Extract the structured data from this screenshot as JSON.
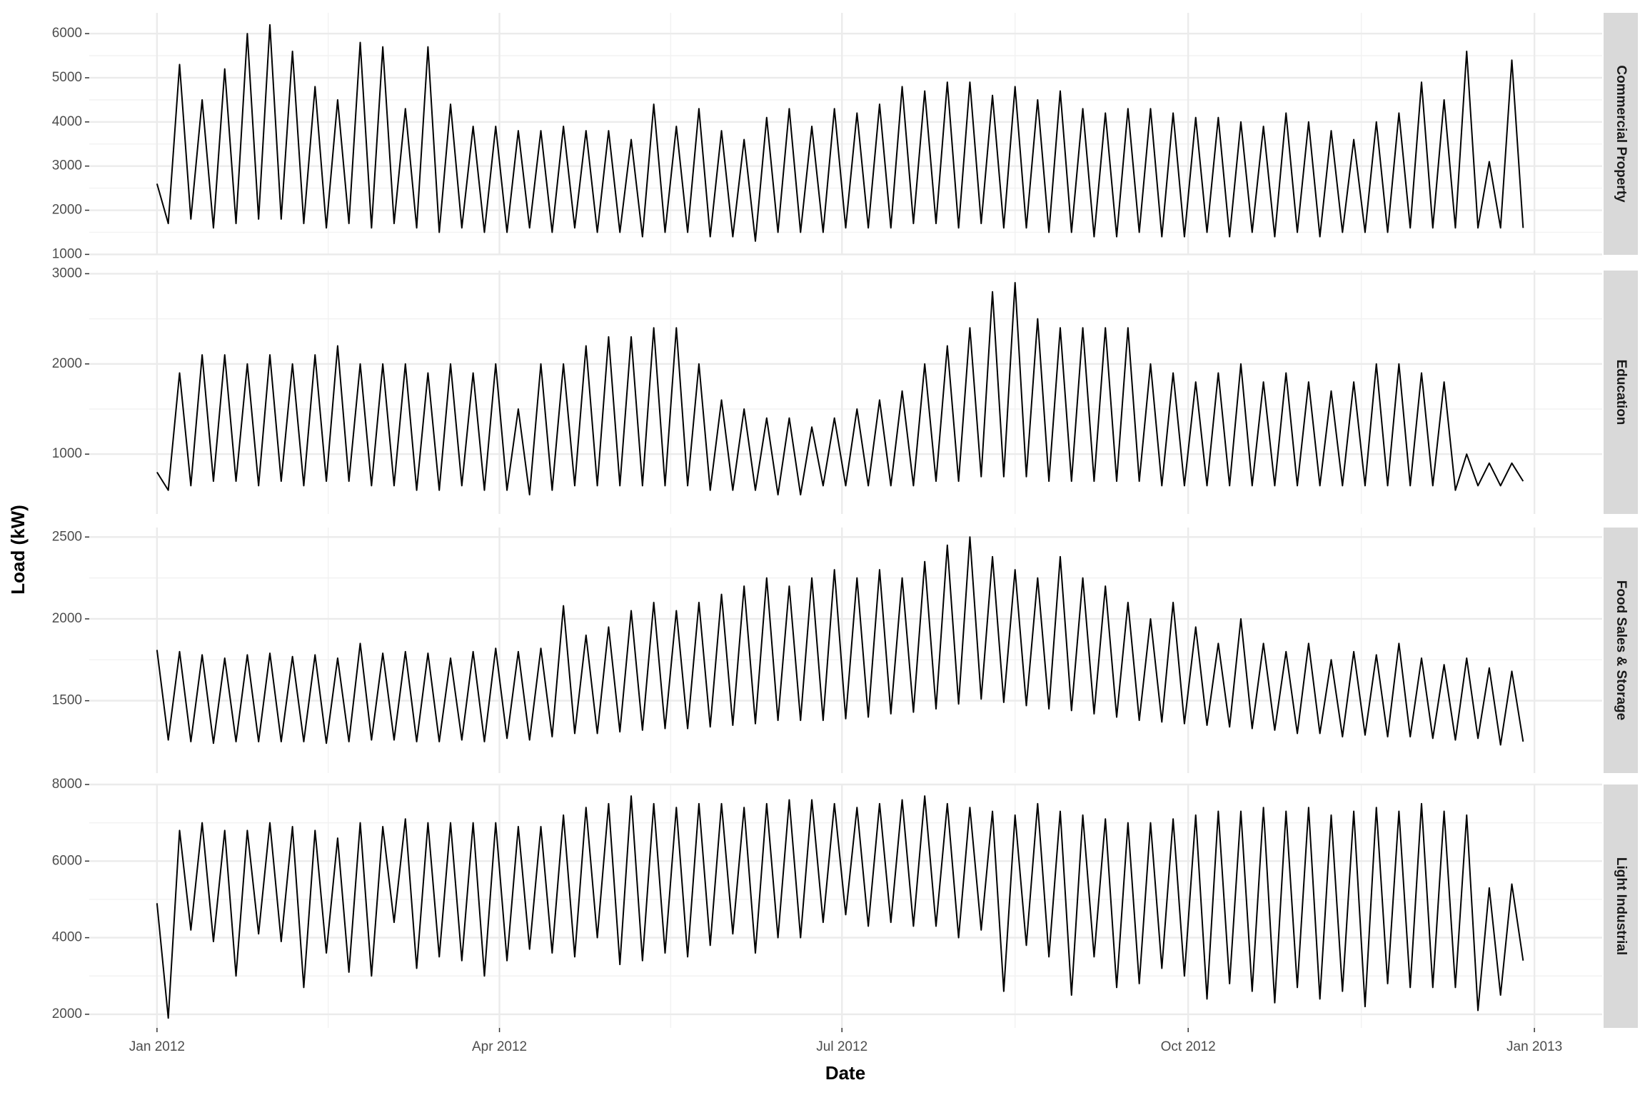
{
  "chart_data": {
    "type": "line",
    "facet": true,
    "xlabel": "Date",
    "ylabel": "Load (kW)",
    "grid": true,
    "color": "#000000",
    "xlim": [
      -18,
      384
    ],
    "xticks": [
      {
        "value": 0,
        "label": "Jan 2012"
      },
      {
        "value": 91,
        "label": "Apr 2012"
      },
      {
        "value": 182,
        "label": "Jul 2012"
      },
      {
        "value": 274,
        "label": "Oct 2012"
      },
      {
        "value": 366,
        "label": "Jan 2013"
      }
    ],
    "x": [
      0,
      3,
      6,
      9,
      12,
      15,
      18,
      21,
      24,
      27,
      30,
      33,
      36,
      39,
      42,
      45,
      48,
      51,
      54,
      57,
      60,
      63,
      66,
      69,
      72,
      75,
      78,
      81,
      84,
      87,
      90,
      93,
      96,
      99,
      102,
      105,
      108,
      111,
      114,
      117,
      120,
      123,
      126,
      129,
      132,
      135,
      138,
      141,
      144,
      147,
      150,
      153,
      156,
      159,
      162,
      165,
      168,
      171,
      174,
      177,
      180,
      183,
      186,
      189,
      192,
      195,
      198,
      201,
      204,
      207,
      210,
      213,
      216,
      219,
      222,
      225,
      228,
      231,
      234,
      237,
      240,
      243,
      246,
      249,
      252,
      255,
      258,
      261,
      264,
      267,
      270,
      273,
      276,
      279,
      282,
      285,
      288,
      291,
      294,
      297,
      300,
      303,
      306,
      309,
      312,
      315,
      318,
      321,
      324,
      327,
      330,
      333,
      336,
      339,
      342,
      345,
      348,
      351,
      354,
      357,
      360,
      363
    ],
    "series": [
      {
        "name": "Commercial Property",
        "ylim": [
          990,
          6470
        ],
        "yticks": [
          1000,
          2000,
          3000,
          4000,
          5000,
          6000
        ],
        "values": [
          2600,
          1700,
          5300,
          1800,
          4500,
          1600,
          5200,
          1700,
          6000,
          1800,
          6200,
          1800,
          5600,
          1700,
          4800,
          1600,
          4500,
          1700,
          5800,
          1600,
          5700,
          1700,
          4300,
          1600,
          5700,
          1500,
          4400,
          1600,
          3900,
          1500,
          3900,
          1500,
          3800,
          1600,
          3800,
          1500,
          3900,
          1600,
          3800,
          1500,
          3800,
          1500,
          3600,
          1400,
          4400,
          1500,
          3900,
          1500,
          4300,
          1400,
          3800,
          1400,
          3600,
          1300,
          4100,
          1500,
          4300,
          1500,
          3900,
          1500,
          4300,
          1600,
          4200,
          1600,
          4400,
          1600,
          4800,
          1700,
          4700,
          1700,
          4900,
          1600,
          4900,
          1700,
          4600,
          1600,
          4800,
          1600,
          4500,
          1500,
          4700,
          1500,
          4300,
          1400,
          4200,
          1400,
          4300,
          1500,
          4300,
          1400,
          4200,
          1400,
          4100,
          1500,
          4100,
          1400,
          4000,
          1500,
          3900,
          1400,
          4200,
          1500,
          4000,
          1400,
          3800,
          1500,
          3600,
          1500,
          4000,
          1500,
          4200,
          1600,
          4900,
          1600,
          4500,
          1600,
          5600,
          1600,
          3100,
          1600,
          5400,
          1600
        ]
      },
      {
        "name": "Education",
        "ylim": [
          337,
          3035
        ],
        "yticks": [
          1000,
          2000,
          3000
        ],
        "values": [
          800,
          600,
          1900,
          650,
          2100,
          700,
          2100,
          700,
          2000,
          650,
          2100,
          700,
          2000,
          650,
          2100,
          700,
          2200,
          700,
          2000,
          650,
          2000,
          650,
          2000,
          600,
          1900,
          600,
          2000,
          650,
          1900,
          600,
          2000,
          600,
          1500,
          550,
          2000,
          600,
          2000,
          650,
          2200,
          650,
          2300,
          650,
          2300,
          650,
          2400,
          650,
          2400,
          650,
          2000,
          600,
          1600,
          600,
          1500,
          600,
          1400,
          550,
          1400,
          550,
          1300,
          650,
          1400,
          650,
          1500,
          650,
          1600,
          650,
          1700,
          650,
          2000,
          700,
          2200,
          700,
          2400,
          750,
          2800,
          750,
          2900,
          750,
          2500,
          700,
          2400,
          700,
          2400,
          700,
          2400,
          700,
          2400,
          700,
          2000,
          650,
          1900,
          650,
          1800,
          650,
          1900,
          650,
          2000,
          650,
          1800,
          650,
          1900,
          650,
          1800,
          650,
          1700,
          650,
          1800,
          650,
          2000,
          650,
          2000,
          650,
          1900,
          650,
          1800,
          600,
          1000,
          650,
          900,
          650,
          900,
          700
        ]
      },
      {
        "name": "Food Sales & Storage",
        "ylim": [
          1058,
          2558
        ],
        "yticks": [
          1500,
          2000,
          2500
        ],
        "values": [
          1810,
          1260,
          1800,
          1250,
          1780,
          1240,
          1760,
          1250,
          1780,
          1250,
          1790,
          1250,
          1770,
          1250,
          1780,
          1240,
          1760,
          1250,
          1850,
          1260,
          1790,
          1260,
          1800,
          1250,
          1790,
          1250,
          1760,
          1260,
          1800,
          1250,
          1820,
          1270,
          1800,
          1260,
          1820,
          1280,
          2080,
          1300,
          1900,
          1300,
          1950,
          1310,
          2050,
          1320,
          2100,
          1330,
          2050,
          1330,
          2100,
          1340,
          2150,
          1350,
          2200,
          1360,
          2250,
          1380,
          2200,
          1380,
          2250,
          1380,
          2300,
          1390,
          2250,
          1400,
          2300,
          1420,
          2250,
          1430,
          2350,
          1450,
          2450,
          1480,
          2500,
          1510,
          2380,
          1490,
          2300,
          1470,
          2250,
          1450,
          2380,
          1440,
          2250,
          1420,
          2200,
          1400,
          2100,
          1380,
          2000,
          1370,
          2100,
          1360,
          1950,
          1350,
          1850,
          1340,
          2000,
          1330,
          1850,
          1320,
          1800,
          1300,
          1850,
          1300,
          1750,
          1280,
          1800,
          1290,
          1780,
          1280,
          1850,
          1280,
          1760,
          1270,
          1720,
          1260,
          1760,
          1270,
          1700,
          1230,
          1680,
          1250
        ]
      },
      {
        "name": "Light Industrial",
        "ylim": [
          1644,
          8000
        ],
        "yticks": [
          2000,
          4000,
          6000,
          8000
        ],
        "values": [
          4900,
          1900,
          6800,
          4200,
          7000,
          3900,
          6800,
          3000,
          6800,
          4100,
          7000,
          3900,
          6900,
          2700,
          6800,
          3600,
          6600,
          3100,
          7000,
          3000,
          6900,
          4400,
          7100,
          3200,
          7000,
          3500,
          7000,
          3400,
          7000,
          3000,
          7000,
          3400,
          6900,
          3700,
          6900,
          3600,
          7200,
          3500,
          7400,
          4000,
          7500,
          3300,
          7700,
          3400,
          7500,
          3600,
          7400,
          3500,
          7500,
          3800,
          7500,
          4100,
          7400,
          3600,
          7500,
          4000,
          7600,
          4000,
          7600,
          4400,
          7500,
          4600,
          7400,
          4300,
          7500,
          4400,
          7600,
          4300,
          7700,
          4300,
          7500,
          4000,
          7400,
          4200,
          7300,
          2600,
          7200,
          3800,
          7500,
          3500,
          7300,
          2500,
          7200,
          3500,
          7100,
          2700,
          7000,
          2800,
          7000,
          3200,
          7100,
          3000,
          7200,
          2400,
          7300,
          2800,
          7300,
          2600,
          7400,
          2300,
          7300,
          2700,
          7400,
          2400,
          7200,
          2600,
          7300,
          2200,
          7400,
          2800,
          7300,
          2700,
          7500,
          2700,
          7300,
          2700,
          7200,
          2100,
          5300,
          2500,
          5400,
          3400
        ]
      }
    ]
  }
}
